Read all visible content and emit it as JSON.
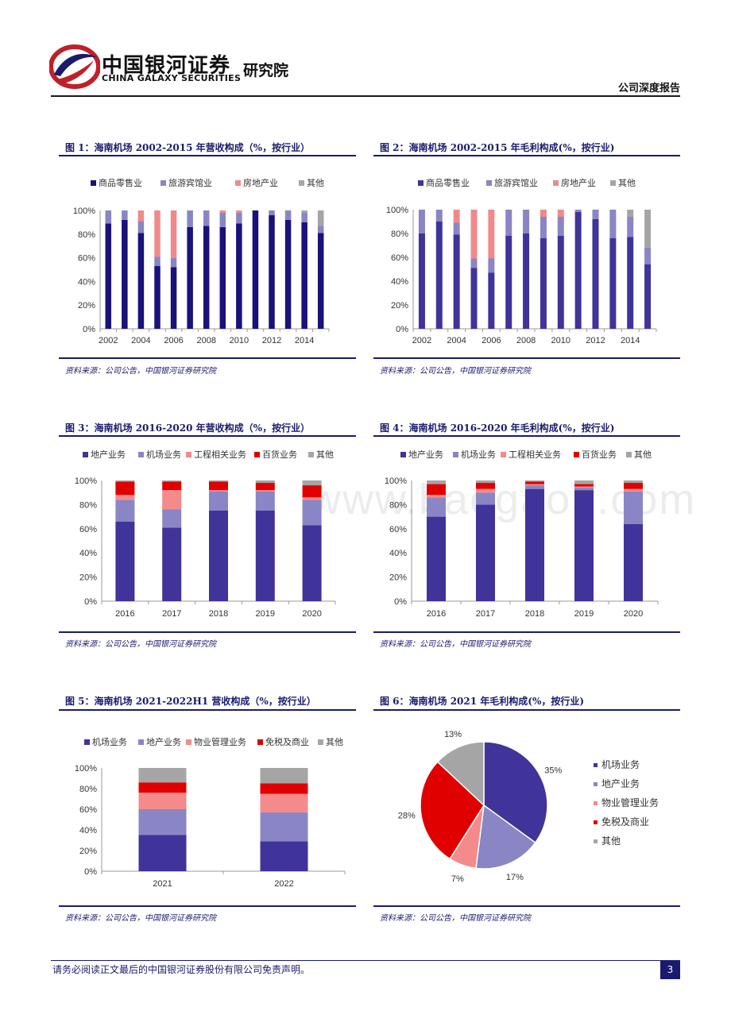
{
  "header": {
    "company_cn": "中国银河证券",
    "company_en": "CHINA GALAXY SECURITIES",
    "division": "研究院",
    "doc_type": "公司深度报告"
  },
  "colors": {
    "retail": "#1a117a",
    "hotel": "#8a85c4",
    "realestate": "#f08a8a",
    "other": "#a5a5a5",
    "airport": "#8a85c4",
    "land": "#40339a",
    "engineering": "#f48a8a",
    "dept": "#e00000",
    "rule": "#1a1a6e"
  },
  "watermark": "www.baogao5.com",
  "source_text": "资料来源：公司公告，中国银河证券研究院",
  "footer": {
    "disclaimer": "请务必阅读正文最后的中国银河证券股份有限公司免责声明。",
    "page": "3"
  },
  "figures": {
    "fig1": {
      "title": "图 1：海南机场 2002-2015 年营收构成（%，按行业）",
      "chart_data": {
        "type": "bar",
        "stacked": true,
        "categories": [
          "2002",
          "2003",
          "2004",
          "2005",
          "2006",
          "2007",
          "2008",
          "2009",
          "2010",
          "2011",
          "2012",
          "2013",
          "2014",
          "2015"
        ],
        "xtick_labels": [
          "2002",
          "",
          "2004",
          "",
          "2006",
          "",
          "2008",
          "",
          "2010",
          "",
          "2012",
          "",
          "2014",
          ""
        ],
        "ylim": [
          0,
          100
        ],
        "ytick_labels": [
          "0%",
          "20%",
          "40%",
          "60%",
          "80%",
          "100%"
        ],
        "series": [
          {
            "name": "商品零售业",
            "color": "#1a117a",
            "values": [
              89,
              92,
              81,
              53,
              52,
              86,
              87,
              86,
              89,
              100,
              96,
              92,
              90,
              81
            ]
          },
          {
            "name": "旅游宾馆业",
            "color": "#8a85c4",
            "values": [
              11,
              8,
              10,
              8,
              8,
              14,
              13,
              12,
              9,
              0,
              4,
              8,
              8,
              6
            ]
          },
          {
            "name": "房地产业",
            "color": "#f08a8a",
            "values": [
              0,
              0,
              9,
              39,
              40,
              0,
              0,
              2,
              2,
              0,
              0,
              0,
              0,
              0
            ]
          },
          {
            "name": "其他",
            "color": "#a5a5a5",
            "values": [
              0,
              0,
              0,
              0,
              0,
              0,
              0,
              0,
              0,
              0,
              0,
              0,
              2,
              13
            ]
          }
        ]
      }
    },
    "fig2": {
      "title": "图 2：海南机场 2002-2015 年毛利构成(%，按行业)",
      "chart_data": {
        "type": "bar",
        "stacked": true,
        "categories": [
          "2002",
          "2003",
          "2004",
          "2005",
          "2006",
          "2007",
          "2008",
          "2009",
          "2010",
          "2011",
          "2012",
          "2013",
          "2014",
          "2015"
        ],
        "xtick_labels": [
          "2002",
          "",
          "2004",
          "",
          "2006",
          "",
          "2008",
          "",
          "2010",
          "",
          "2012",
          "",
          "2014",
          ""
        ],
        "ylim": [
          0,
          100
        ],
        "ytick_labels": [
          "0%",
          "20%",
          "40%",
          "60%",
          "80%",
          "100%"
        ],
        "series": [
          {
            "name": "商品零售业",
            "color": "#40339a",
            "values": [
              80,
              90,
              79,
              51,
              47,
              78,
              80,
              76,
              78,
              98,
              92,
              76,
              77,
              54
            ]
          },
          {
            "name": "旅游宾馆业",
            "color": "#8a85c4",
            "values": [
              20,
              10,
              10,
              8,
              12,
              22,
              20,
              18,
              16,
              2,
              8,
              24,
              17,
              14
            ]
          },
          {
            "name": "房地产业",
            "color": "#f08a8a",
            "values": [
              0,
              0,
              11,
              41,
              41,
              0,
              0,
              6,
              6,
              0,
              0,
              0,
              0,
              0
            ]
          },
          {
            "name": "其他",
            "color": "#a5a5a5",
            "values": [
              0,
              0,
              0,
              0,
              0,
              0,
              0,
              0,
              0,
              0,
              0,
              0,
              6,
              32
            ]
          }
        ]
      }
    },
    "fig3": {
      "title": "图 3：海南机场 2016-2020 年营收构成（%，按行业）",
      "chart_data": {
        "type": "bar",
        "stacked": true,
        "categories": [
          "2016",
          "2017",
          "2018",
          "2019",
          "2020"
        ],
        "xtick_labels": [
          "2016",
          "2017",
          "2018",
          "2019",
          "2020"
        ],
        "ylim": [
          0,
          100
        ],
        "ytick_labels": [
          "0%",
          "20%",
          "40%",
          "60%",
          "80%",
          "100%"
        ],
        "series": [
          {
            "name": "地产业务",
            "color": "#40339a",
            "values": [
              66,
              61,
              75,
              75,
              63
            ]
          },
          {
            "name": "机场业务",
            "color": "#8a85c4",
            "values": [
              18,
              15,
              16,
              16,
              21
            ]
          },
          {
            "name": "工程相关业务",
            "color": "#f48a8a",
            "values": [
              4,
              16,
              1,
              1,
              2
            ]
          },
          {
            "name": "百货业务",
            "color": "#e00000",
            "values": [
              11,
              7,
              7,
              6,
              10
            ]
          },
          {
            "name": "其他",
            "color": "#a5a5a5",
            "values": [
              1,
              1,
              1,
              2,
              4
            ]
          }
        ]
      }
    },
    "fig4": {
      "title": "图 4：海南机场 2016-2020 年毛利构成(%，按行业)",
      "chart_data": {
        "type": "bar",
        "stacked": true,
        "categories": [
          "2016",
          "2017",
          "2018",
          "2019",
          "2020"
        ],
        "xtick_labels": [
          "2016",
          "2017",
          "2018",
          "2019",
          "2020"
        ],
        "ylim": [
          0,
          100
        ],
        "ytick_labels": [
          "0%",
          "20%",
          "40%",
          "60%",
          "80%",
          "100%"
        ],
        "series": [
          {
            "name": "地产业务",
            "color": "#40339a",
            "values": [
              70,
              80,
              93,
              92,
              64
            ]
          },
          {
            "name": "机场业务",
            "color": "#8a85c4",
            "values": [
              16,
              10,
              3,
              2,
              27
            ]
          },
          {
            "name": "工程相关业务",
            "color": "#f48a8a",
            "values": [
              2,
              3,
              1,
              1,
              2
            ]
          },
          {
            "name": "百货业务",
            "color": "#e00000",
            "values": [
              9,
              5,
              2,
              2,
              5
            ]
          },
          {
            "name": "其他",
            "color": "#a5a5a5",
            "values": [
              3,
              2,
              1,
              3,
              2
            ]
          }
        ]
      }
    },
    "fig5": {
      "title": "图 5：海南机场 2021-2022H1 营收构成（%，按行业）",
      "chart_data": {
        "type": "bar",
        "stacked": true,
        "categories": [
          "2021",
          "2022"
        ],
        "xtick_labels": [
          "2021",
          "2022"
        ],
        "ylim": [
          0,
          100
        ],
        "ytick_labels": [
          "0%",
          "20%",
          "40%",
          "60%",
          "80%",
          "100%"
        ],
        "series": [
          {
            "name": "机场业务",
            "color": "#40339a",
            "values": [
              35,
              29
            ]
          },
          {
            "name": "地产业务",
            "color": "#8a85c4",
            "values": [
              25,
              28
            ]
          },
          {
            "name": "物业管理业务",
            "color": "#f48a8a",
            "values": [
              16,
              18
            ]
          },
          {
            "name": "免税及商业",
            "color": "#e00000",
            "values": [
              10,
              10
            ]
          },
          {
            "name": "其他",
            "color": "#a5a5a5",
            "values": [
              14,
              15
            ]
          }
        ]
      }
    },
    "fig6": {
      "title": "图 6：海南机场 2021 年毛利构成(%，按行业)",
      "chart_data": {
        "type": "pie",
        "labels": [
          "机场业务",
          "地产业务",
          "物业管理业务",
          "免税及商业",
          "其他"
        ],
        "values": [
          35,
          17,
          7,
          28,
          13
        ],
        "value_labels": [
          "35%",
          "17%",
          "7%",
          "28%",
          "13%"
        ],
        "colors": [
          "#40339a",
          "#8a85c4",
          "#f48a8a",
          "#e00000",
          "#a5a5a5"
        ]
      }
    }
  }
}
